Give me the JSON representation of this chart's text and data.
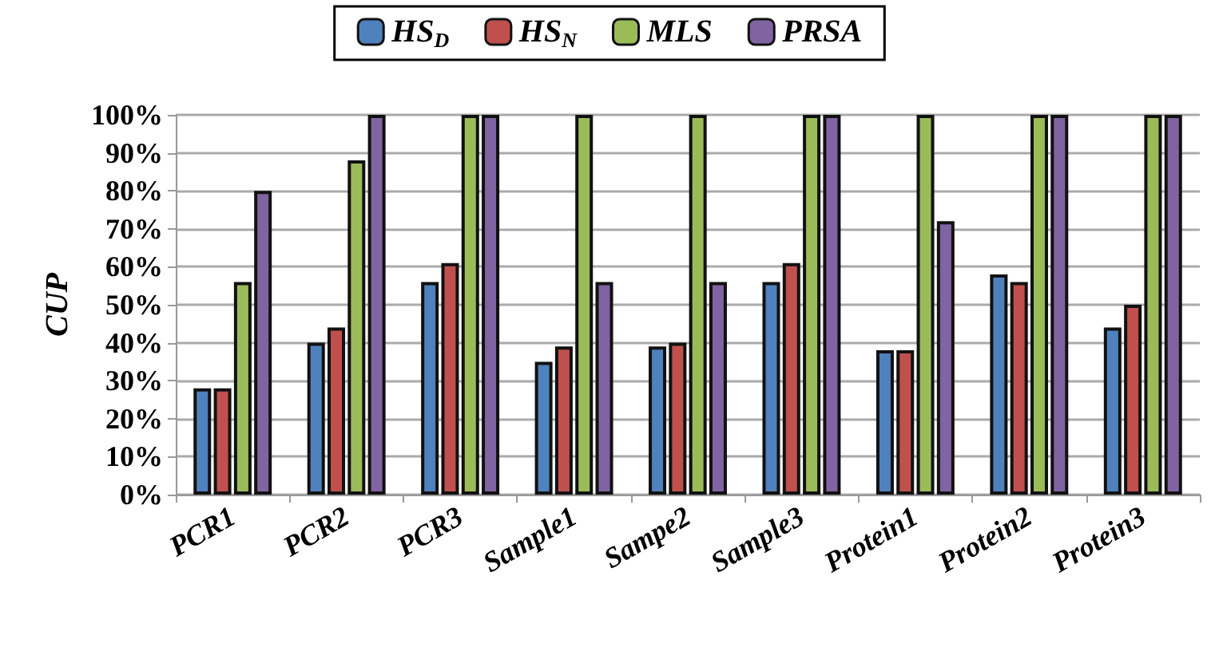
{
  "chart_data": {
    "type": "bar",
    "ylabel": "CUP",
    "categories": [
      "PCR1",
      "PCR2",
      "PCR3",
      "Sample1",
      "Sampe2",
      "Sample3",
      "Protein1",
      "Protein2",
      "Protein3"
    ],
    "series": [
      {
        "name": "HS$_{D}$",
        "color": "#4f81bd",
        "values": [
          28,
          40,
          56,
          35,
          39,
          56,
          38,
          58,
          44
        ]
      },
      {
        "name": "HS$_{N}$",
        "color": "#c0504d",
        "values": [
          28,
          44,
          61,
          39,
          40,
          61,
          38,
          56,
          50
        ]
      },
      {
        "name": "MLS",
        "color": "#9bbb59",
        "values": [
          56,
          88,
          100,
          100,
          100,
          100,
          100,
          100,
          100
        ]
      },
      {
        "name": "PRSA",
        "color": "#8064a2",
        "values": [
          80,
          100,
          100,
          56,
          56,
          100,
          72,
          100,
          100
        ]
      }
    ],
    "ylim": [
      0,
      100
    ],
    "yticks": [
      {
        "value": 0,
        "label": "0%"
      },
      {
        "value": 10,
        "label": "10%"
      },
      {
        "value": 20,
        "label": "20%"
      },
      {
        "value": 30,
        "label": "30%"
      },
      {
        "value": 40,
        "label": "40%"
      },
      {
        "value": 50,
        "label": "50%"
      },
      {
        "value": 60,
        "label": "60%"
      },
      {
        "value": 70,
        "label": "70%"
      },
      {
        "value": 80,
        "label": "80%"
      },
      {
        "value": 90,
        "label": "90%"
      },
      {
        "value": 100,
        "label": "100%"
      }
    ],
    "grid": "y",
    "legend": "top"
  }
}
